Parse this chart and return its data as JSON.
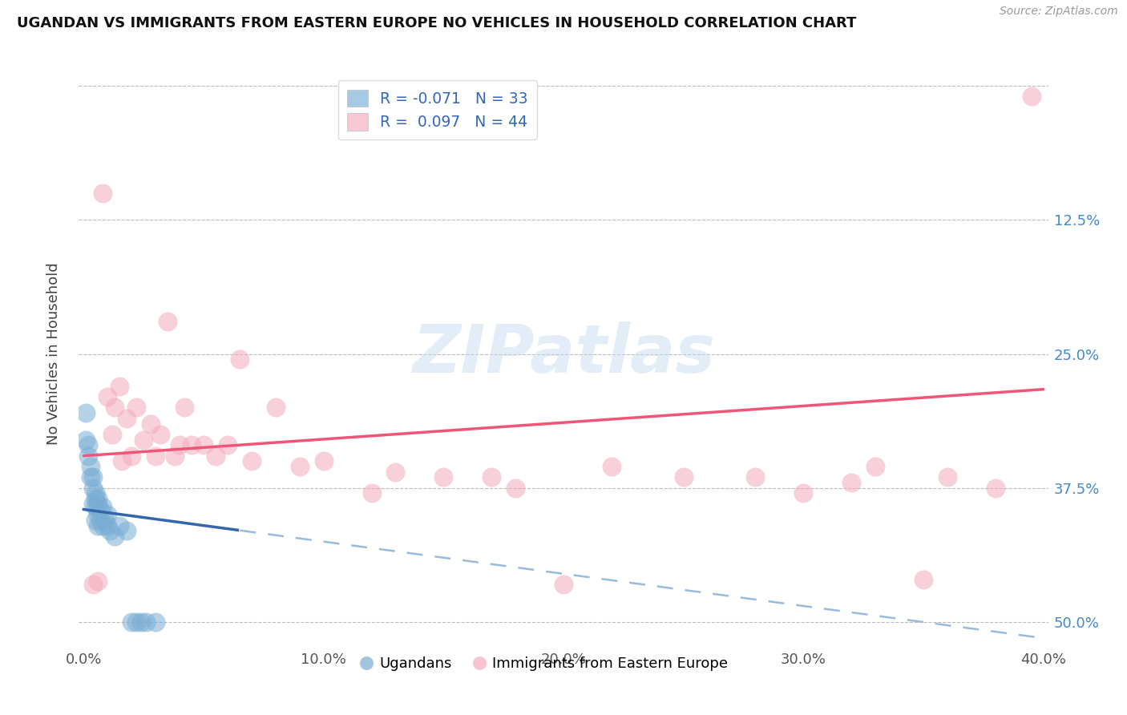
{
  "title": "UGANDAN VS IMMIGRANTS FROM EASTERN EUROPE NO VEHICLES IN HOUSEHOLD CORRELATION CHART",
  "source": "Source: ZipAtlas.com",
  "ylabel": "No Vehicles in Household",
  "x_tick_labels": [
    "0.0%",
    "10.0%",
    "20.0%",
    "30.0%",
    "40.0%"
  ],
  "y_tick_labels_right": [
    "50.0%",
    "37.5%",
    "25.0%",
    "12.5%",
    ""
  ],
  "xlim": [
    -0.002,
    0.402
  ],
  "ylim": [
    -0.02,
    0.52
  ],
  "yticks": [
    0.0,
    0.125,
    0.25,
    0.375,
    0.5
  ],
  "xticks": [
    0.0,
    0.1,
    0.2,
    0.3,
    0.4
  ],
  "legend_labels": [
    "Ugandans",
    "Immigrants from Eastern Europe"
  ],
  "r_ugandan": -0.071,
  "n_ugandan": 33,
  "r_eastern": 0.097,
  "n_eastern": 44,
  "blue_color": "#7AADD4",
  "pink_color": "#F4AABC",
  "blue_line_color": "#3366AA",
  "pink_line_color": "#EE5577",
  "blue_dashed_color": "#99BBDD",
  "watermark_color": "#C8DCF0",
  "ugandan_x": [
    0.001,
    0.001,
    0.002,
    0.002,
    0.003,
    0.003,
    0.004,
    0.004,
    0.004,
    0.005,
    0.005,
    0.005,
    0.005,
    0.006,
    0.006,
    0.006,
    0.006,
    0.007,
    0.007,
    0.008,
    0.008,
    0.009,
    0.01,
    0.01,
    0.011,
    0.013,
    0.015,
    0.018,
    0.02,
    0.022,
    0.024,
    0.026,
    0.03
  ],
  "ugandan_y": [
    0.195,
    0.17,
    0.165,
    0.155,
    0.145,
    0.135,
    0.135,
    0.125,
    0.11,
    0.12,
    0.115,
    0.108,
    0.095,
    0.115,
    0.11,
    0.1,
    0.09,
    0.105,
    0.095,
    0.108,
    0.09,
    0.095,
    0.1,
    0.09,
    0.085,
    0.08,
    0.09,
    0.085,
    0.0,
    0.0,
    0.0,
    0.0,
    0.0
  ],
  "eastern_x": [
    0.004,
    0.006,
    0.008,
    0.01,
    0.012,
    0.013,
    0.015,
    0.016,
    0.018,
    0.02,
    0.022,
    0.025,
    0.028,
    0.03,
    0.032,
    0.035,
    0.038,
    0.04,
    0.042,
    0.045,
    0.05,
    0.055,
    0.06,
    0.065,
    0.07,
    0.08,
    0.09,
    0.1,
    0.12,
    0.13,
    0.15,
    0.17,
    0.18,
    0.2,
    0.22,
    0.25,
    0.28,
    0.3,
    0.32,
    0.33,
    0.35,
    0.36,
    0.38,
    0.395
  ],
  "eastern_y": [
    0.035,
    0.038,
    0.4,
    0.21,
    0.175,
    0.2,
    0.22,
    0.15,
    0.19,
    0.155,
    0.2,
    0.17,
    0.185,
    0.155,
    0.175,
    0.28,
    0.155,
    0.165,
    0.2,
    0.165,
    0.165,
    0.155,
    0.165,
    0.245,
    0.15,
    0.2,
    0.145,
    0.15,
    0.12,
    0.14,
    0.135,
    0.135,
    0.125,
    0.035,
    0.145,
    0.135,
    0.135,
    0.12,
    0.13,
    0.145,
    0.04,
    0.135,
    0.125,
    0.49
  ],
  "blue_line_x_solid_end": 0.065,
  "pink_intercept": 0.155,
  "pink_slope": 0.155,
  "blue_intercept": 0.105,
  "blue_slope": -0.3
}
